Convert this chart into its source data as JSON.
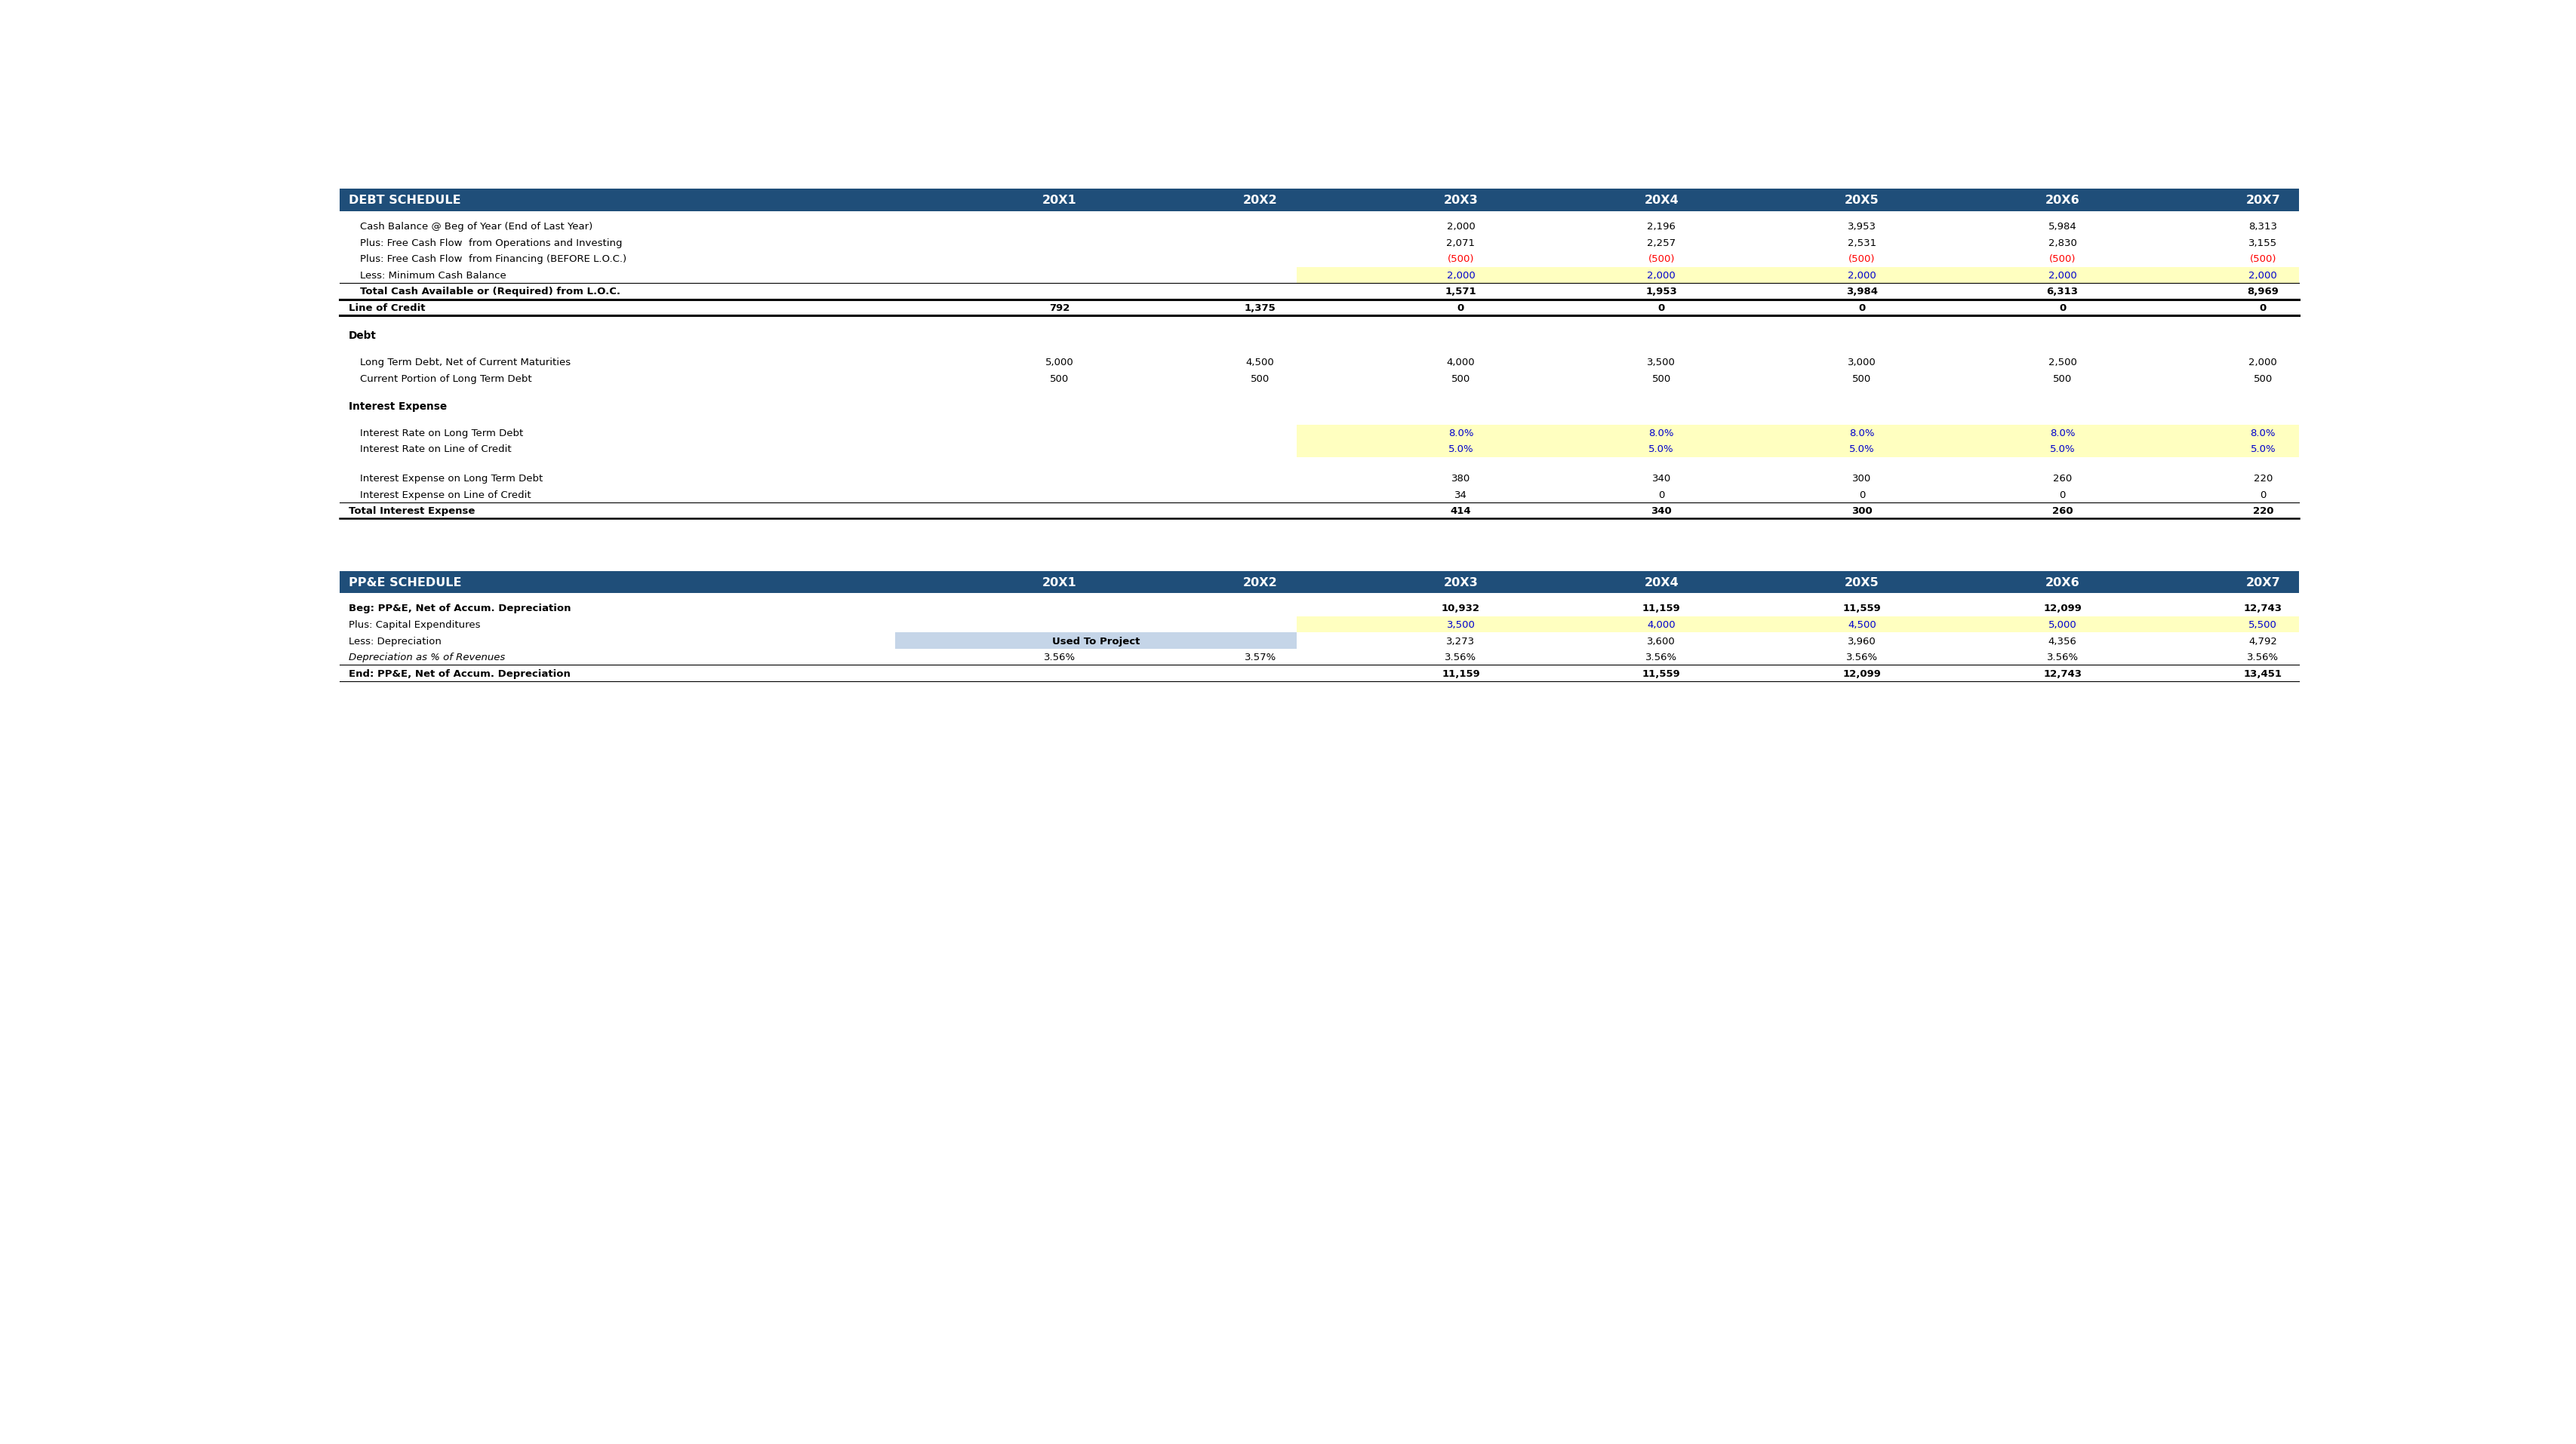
{
  "header_bg": "#1F4E79",
  "header_text_color": "#FFFFFF",
  "black": "#000000",
  "blue": "#0000CD",
  "red": "#FF0000",
  "yellow_bg": "#FFFFC0",
  "light_blue_bg": "#C5D5E8",
  "white": "#FFFFFF",
  "debt_header": "DEBT SCHEDULE",
  "ppe_header": "PP&E SCHEDULE",
  "years": [
    "20X1",
    "20X2",
    "20X3",
    "20X4",
    "20X5",
    "20X6",
    "20X7"
  ],
  "debt_rows": [
    {
      "label": "Cash Balance @ Beg of Year (End of Last Year)",
      "indent": true,
      "bold": false,
      "values": [
        "",
        "",
        "2,000",
        "2,196",
        "3,953",
        "5,984",
        "8,313"
      ],
      "colors": [
        "black",
        "black",
        "black",
        "black",
        "black",
        "black",
        "black"
      ],
      "bg": [
        "white",
        "white",
        "white",
        "white",
        "white",
        "white",
        "white"
      ]
    },
    {
      "label": "Plus: Free Cash Flow  from Operations and Investing",
      "indent": true,
      "bold": false,
      "values": [
        "",
        "",
        "2,071",
        "2,257",
        "2,531",
        "2,830",
        "3,155"
      ],
      "colors": [
        "black",
        "black",
        "black",
        "black",
        "black",
        "black",
        "black"
      ],
      "bg": [
        "white",
        "white",
        "white",
        "white",
        "white",
        "white",
        "white"
      ]
    },
    {
      "label": "Plus: Free Cash Flow  from Financing (BEFORE L.O.C.)",
      "indent": true,
      "bold": false,
      "values": [
        "",
        "",
        "(500)",
        "(500)",
        "(500)",
        "(500)",
        "(500)"
      ],
      "colors": [
        "black",
        "black",
        "red",
        "red",
        "red",
        "red",
        "red"
      ],
      "bg": [
        "white",
        "white",
        "white",
        "white",
        "white",
        "white",
        "white"
      ]
    },
    {
      "label": "Less: Minimum Cash Balance",
      "indent": true,
      "bold": false,
      "values": [
        "",
        "",
        "2,000",
        "2,000",
        "2,000",
        "2,000",
        "2,000"
      ],
      "colors": [
        "black",
        "black",
        "blue",
        "blue",
        "blue",
        "blue",
        "blue"
      ],
      "bg": [
        "white",
        "white",
        "yellow",
        "yellow",
        "yellow",
        "yellow",
        "yellow"
      ]
    },
    {
      "label": "Total Cash Available or (Required) from L.O.C.",
      "indent": true,
      "bold": true,
      "values": [
        "",
        "",
        "1,571",
        "1,953",
        "3,984",
        "6,313",
        "8,969"
      ],
      "colors": [
        "black",
        "black",
        "black",
        "black",
        "black",
        "black",
        "black"
      ],
      "bg": [
        "white",
        "white",
        "white",
        "white",
        "white",
        "white",
        "white"
      ]
    }
  ],
  "loc_row": {
    "label": "Line of Credit",
    "bold": true,
    "values": [
      "792",
      "1,375",
      "0",
      "0",
      "0",
      "0",
      "0"
    ],
    "colors": [
      "black",
      "black",
      "black",
      "black",
      "black",
      "black",
      "black"
    ]
  },
  "debt_section_label": "Debt",
  "debt_sub_rows": [
    {
      "label": "Long Term Debt, Net of Current Maturities",
      "indent": true,
      "bold": false,
      "values": [
        "5,000",
        "4,500",
        "4,000",
        "3,500",
        "3,000",
        "2,500",
        "2,000"
      ],
      "colors": [
        "black",
        "black",
        "black",
        "black",
        "black",
        "black",
        "black"
      ],
      "bg": [
        "white",
        "white",
        "white",
        "white",
        "white",
        "white",
        "white"
      ]
    },
    {
      "label": "Current Portion of Long Term Debt",
      "indent": true,
      "bold": false,
      "values": [
        "500",
        "500",
        "500",
        "500",
        "500",
        "500",
        "500"
      ],
      "colors": [
        "black",
        "black",
        "black",
        "black",
        "black",
        "black",
        "black"
      ],
      "bg": [
        "white",
        "white",
        "white",
        "white",
        "white",
        "white",
        "white"
      ]
    }
  ],
  "interest_section_label": "Interest Expense",
  "interest_rows": [
    {
      "label": "Interest Rate on Long Term Debt",
      "indent": true,
      "bold": false,
      "values": [
        "",
        "",
        "8.0%",
        "8.0%",
        "8.0%",
        "8.0%",
        "8.0%"
      ],
      "colors": [
        "black",
        "black",
        "blue",
        "blue",
        "blue",
        "blue",
        "blue"
      ],
      "bg": [
        "white",
        "white",
        "yellow",
        "yellow",
        "yellow",
        "yellow",
        "yellow"
      ]
    },
    {
      "label": "Interest Rate on Line of Credit",
      "indent": true,
      "bold": false,
      "values": [
        "",
        "",
        "5.0%",
        "5.0%",
        "5.0%",
        "5.0%",
        "5.0%"
      ],
      "colors": [
        "black",
        "black",
        "blue",
        "blue",
        "blue",
        "blue",
        "blue"
      ],
      "bg": [
        "white",
        "white",
        "yellow",
        "yellow",
        "yellow",
        "yellow",
        "yellow"
      ]
    },
    {
      "label": "Interest Expense on Long Term Debt",
      "indent": true,
      "bold": false,
      "values": [
        "",
        "",
        "380",
        "340",
        "300",
        "260",
        "220"
      ],
      "colors": [
        "black",
        "black",
        "black",
        "black",
        "black",
        "black",
        "black"
      ],
      "bg": [
        "white",
        "white",
        "white",
        "white",
        "white",
        "white",
        "white"
      ]
    },
    {
      "label": "Interest Expense on Line of Credit",
      "indent": true,
      "bold": false,
      "values": [
        "",
        "",
        "34",
        "0",
        "0",
        "0",
        "0"
      ],
      "colors": [
        "black",
        "black",
        "black",
        "black",
        "black",
        "black",
        "black"
      ],
      "bg": [
        "white",
        "white",
        "white",
        "white",
        "white",
        "white",
        "white"
      ]
    }
  ],
  "total_interest_row": {
    "label": "Total Interest Expense",
    "bold": true,
    "values": [
      "",
      "",
      "414",
      "340",
      "300",
      "260",
      "220"
    ],
    "colors": [
      "black",
      "black",
      "black",
      "black",
      "black",
      "black",
      "black"
    ]
  },
  "ppe_rows": [
    {
      "label": "Beg: PP&E, Net of Accum. Depreciation",
      "indent": false,
      "bold": true,
      "values": [
        "",
        "",
        "10,932",
        "11,159",
        "11,559",
        "12,099",
        "12,743"
      ],
      "colors": [
        "black",
        "black",
        "black",
        "black",
        "black",
        "black",
        "black"
      ],
      "bg": [
        "white",
        "white",
        "white",
        "white",
        "white",
        "white",
        "white"
      ]
    },
    {
      "label": "Plus: Capital Expenditures",
      "indent": false,
      "bold": false,
      "values": [
        "",
        "",
        "3,500",
        "4,000",
        "4,500",
        "5,000",
        "5,500"
      ],
      "colors": [
        "black",
        "black",
        "blue",
        "blue",
        "blue",
        "blue",
        "blue"
      ],
      "bg": [
        "white",
        "white",
        "yellow",
        "yellow",
        "yellow",
        "yellow",
        "yellow"
      ]
    },
    {
      "label": "Less: Depreciation",
      "indent": false,
      "bold": false,
      "values": [
        "",
        "",
        "3,273",
        "3,600",
        "3,960",
        "4,356",
        "4,792"
      ],
      "colors": [
        "black",
        "black",
        "black",
        "black",
        "black",
        "black",
        "black"
      ],
      "bg": [
        "white",
        "white",
        "white",
        "white",
        "white",
        "white",
        "white"
      ],
      "used_to_project": true
    },
    {
      "label": "Depreciation as % of Revenues",
      "indent": false,
      "bold": false,
      "italic": true,
      "values": [
        "3.56%",
        "3.57%",
        "3.56%",
        "3.56%",
        "3.56%",
        "3.56%",
        "3.56%"
      ],
      "colors": [
        "black",
        "black",
        "black",
        "black",
        "black",
        "black",
        "black"
      ],
      "bg": [
        "white",
        "white",
        "white",
        "white",
        "white",
        "white",
        "white"
      ]
    }
  ],
  "ppe_end_row": {
    "label": "End: PP&E, Net of Accum. Depreciation",
    "bold": true,
    "values": [
      "",
      "",
      "11,159",
      "11,559",
      "12,099",
      "12,743",
      "13,451"
    ],
    "colors": [
      "black",
      "black",
      "black",
      "black",
      "black",
      "black",
      "black"
    ]
  }
}
